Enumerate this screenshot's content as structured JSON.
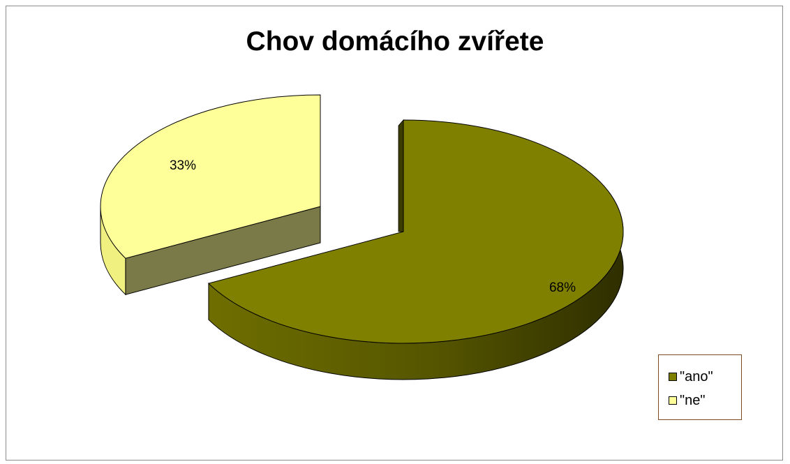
{
  "chart_data": {
    "type": "pie",
    "title": "Chov domácího zvířete",
    "categories": [
      "\"ano\"",
      "\"ne\""
    ],
    "values": [
      68,
      33
    ],
    "data_labels": [
      "68%",
      "33%"
    ],
    "colors": [
      "#808000",
      "#ffff99"
    ],
    "legend_position": "right-bottom",
    "style": "3d-exploded"
  }
}
